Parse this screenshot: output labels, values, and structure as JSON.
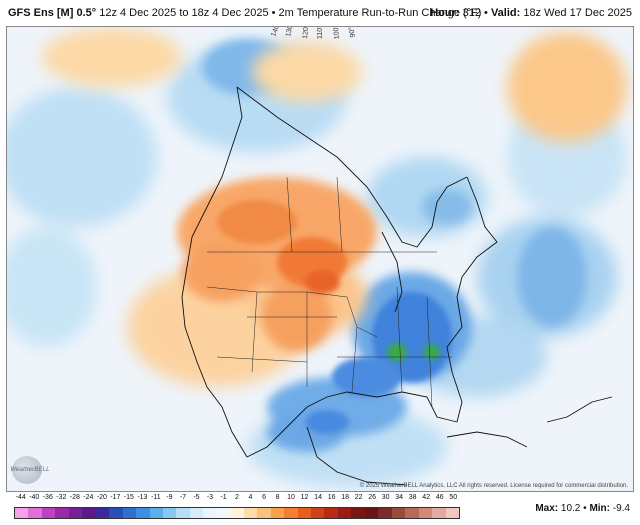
{
  "header": {
    "model": "GFS Ens [M] 0.5°",
    "runs": "12z 4 Dec 2025 to 18z 4 Dec 2025 • 2m Temperature Run-to-Run Change (°F)",
    "hour_label": "Hour:",
    "hour_value": "312",
    "valid_label": "Valid:",
    "valid_value": "18z Wed 17 Dec 2025"
  },
  "map": {
    "meridian_labels": [
      "140°W",
      "130°W",
      "120°W",
      "110°W",
      "100°W",
      "90°W"
    ],
    "region": "North America"
  },
  "logo": {
    "text": "WeatherBELL"
  },
  "credit": "© 2025 WeatherBELL Analytics, LLC All rights reserved. License required for commercial distribution.",
  "stats": {
    "max_label": "Max:",
    "max_value": "10.2",
    "min_label": "Min:",
    "min_value": "-9.4"
  },
  "colorbar": {
    "ticks": [
      "-44",
      "-40",
      "-36",
      "-32",
      "-28",
      "-24",
      "-20",
      "-17",
      "-15",
      "-13",
      "-11",
      "-9",
      "-7",
      "-5",
      "-3",
      "-1",
      "2",
      "4",
      "6",
      "8",
      "10",
      "12",
      "14",
      "16",
      "18",
      "22",
      "26",
      "30",
      "34",
      "38",
      "42",
      "46",
      "50"
    ],
    "colors": [
      "#f5a0e8",
      "#e070d8",
      "#c040c0",
      "#9a2aa8",
      "#7a1e9a",
      "#5a1a8a",
      "#3b2a9e",
      "#2a4fb8",
      "#2f6fd2",
      "#3e8fe0",
      "#5aaeea",
      "#86c8f2",
      "#b6def7",
      "#d6ecfa",
      "#eaf4fc",
      "#f2f7fb",
      "#fff3dc",
      "#fddcaa",
      "#fbc07a",
      "#f8a04c",
      "#f47f2c",
      "#e85e1e",
      "#d24018",
      "#b82a14",
      "#9a1c12",
      "#7c1410",
      "#6a1418",
      "#7a2a2a",
      "#9a4a3a",
      "#b86a5a",
      "#d08a7a",
      "#e4aaa0",
      "#f0c8c0"
    ]
  }
}
